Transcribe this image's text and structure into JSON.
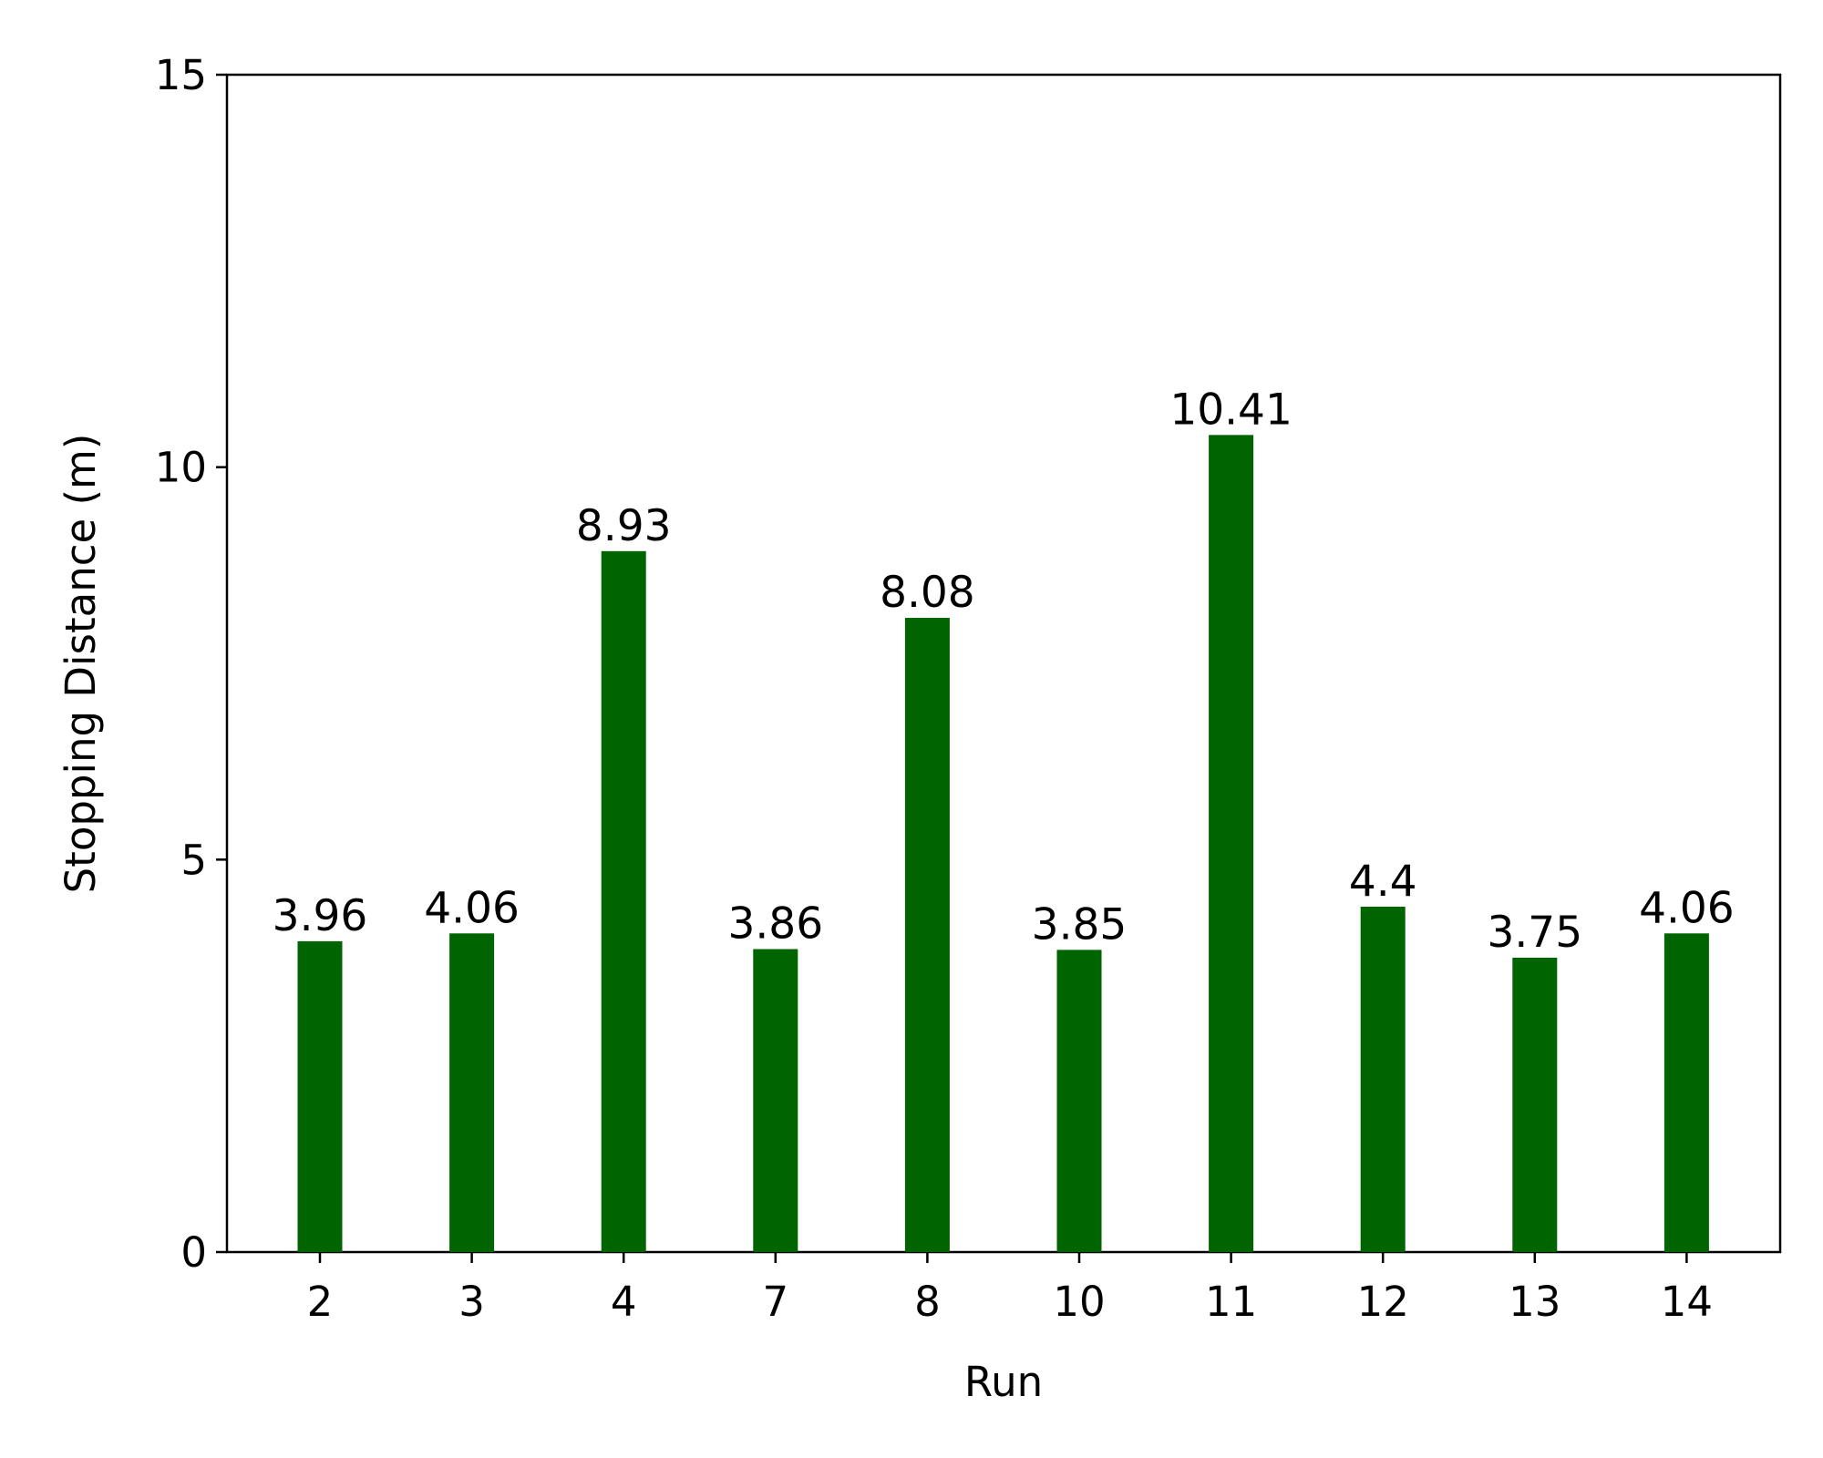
{
  "chart_data": {
    "type": "bar",
    "title": "",
    "xlabel": "Run",
    "ylabel": "Stopping Distance (m)",
    "categories": [
      "2",
      "3",
      "4",
      "7",
      "8",
      "10",
      "11",
      "12",
      "13",
      "14"
    ],
    "values": [
      3.96,
      4.06,
      8.93,
      3.86,
      8.08,
      3.85,
      10.41,
      4.4,
      3.75,
      4.06
    ],
    "value_labels": [
      "3.96",
      "4.06",
      "8.93",
      "3.86",
      "8.08",
      "3.85",
      "10.41",
      "4.4",
      "3.75",
      "4.06"
    ],
    "ylim": [
      0,
      15
    ],
    "yticks": [
      0,
      5,
      10,
      15
    ],
    "ytick_labels": [
      "0",
      "5",
      "10",
      "15"
    ],
    "grid": false,
    "legend": "none",
    "bar_color": "#006400"
  }
}
